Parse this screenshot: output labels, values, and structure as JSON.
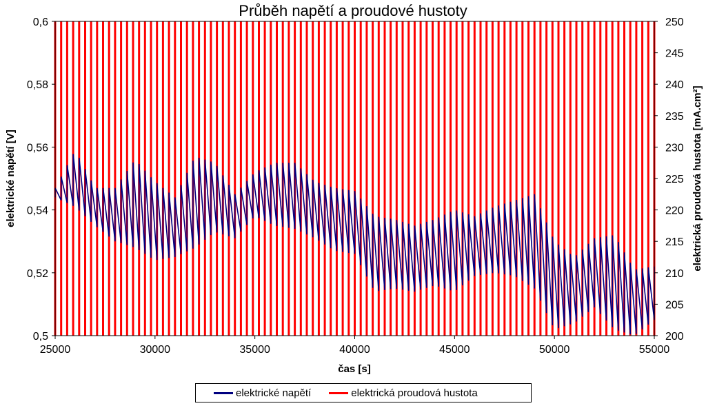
{
  "chart_data": {
    "type": "line",
    "title": "Průběh napětí a proudové hustoty",
    "xlabel": "čas [s]",
    "ylabel_left": "elektrické napětí [V]",
    "ylabel_right": "elektrická proudová hustota [mA.cm²]",
    "xlim": [
      25000,
      55000
    ],
    "ylim_left": [
      0.5,
      0.6
    ],
    "ylim_right": [
      200,
      250
    ],
    "x_ticks": [
      "25000",
      "30000",
      "35000",
      "40000",
      "45000",
      "50000",
      "55000"
    ],
    "y_left_ticks": [
      "0,5",
      "0,52",
      "0,54",
      "0,56",
      "0,58",
      "0,6"
    ],
    "y_right_ticks": [
      "200",
      "205",
      "210",
      "215",
      "220",
      "225",
      "230",
      "235",
      "240",
      "245",
      "250"
    ],
    "grid": false,
    "legend_position": "bottom",
    "series": [
      {
        "name": "elektrické napětí",
        "axis": "left",
        "color": "#000080",
        "note_pattern": "oscillating between low and high values each cycle",
        "x": [
          25000,
          26000,
          27000,
          28000,
          29000,
          30000,
          31000,
          32000,
          33000,
          34000,
          35000,
          36000,
          37000,
          38000,
          39000,
          40000,
          41000,
          42000,
          43000,
          44000,
          45000,
          46000,
          47000,
          48000,
          49000,
          50000,
          51000,
          52000,
          53000,
          54000,
          55000
        ],
        "high": [
          0.547,
          0.559,
          0.547,
          0.547,
          0.556,
          0.549,
          0.544,
          0.557,
          0.555,
          0.545,
          0.552,
          0.555,
          0.555,
          0.549,
          0.547,
          0.546,
          0.538,
          0.537,
          0.535,
          0.537,
          0.54,
          0.538,
          0.541,
          0.543,
          0.545,
          0.53,
          0.525,
          0.531,
          0.532,
          0.521,
          0.522
        ],
        "low": [
          0.544,
          0.541,
          0.535,
          0.53,
          0.528,
          0.524,
          0.525,
          0.528,
          0.533,
          0.531,
          0.538,
          0.535,
          0.534,
          0.531,
          0.527,
          0.526,
          0.514,
          0.515,
          0.514,
          0.516,
          0.514,
          0.519,
          0.52,
          0.519,
          0.515,
          0.502,
          0.504,
          0.509,
          0.502,
          0.5,
          0.505
        ]
      },
      {
        "name": "elektrická proudová hustota",
        "axis": "right",
        "color": "#ff0000",
        "note_pattern": "square wave switching between 200 and 250 with a period of about 300 s",
        "period": 300,
        "low": 200,
        "high": 250
      }
    ]
  }
}
